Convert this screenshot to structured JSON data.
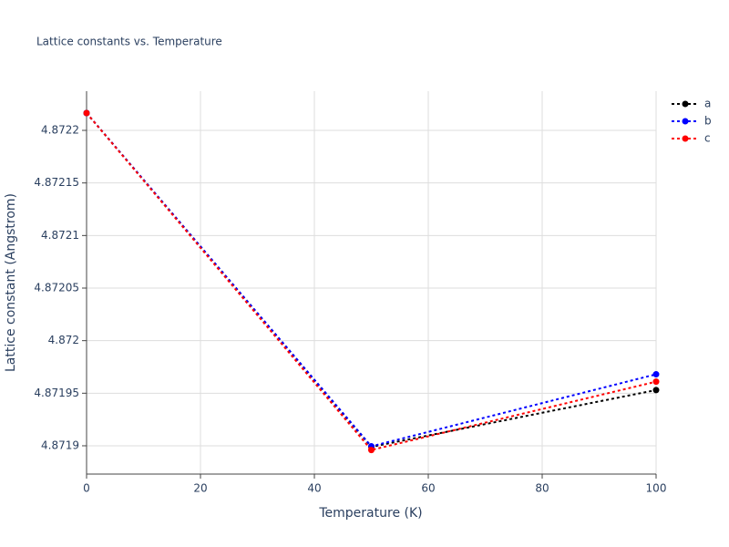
{
  "chart_data": {
    "type": "line",
    "title": "Lattice constants vs. Temperature",
    "x_label": "Temperature (K)",
    "y_label": "Lattice constant (Angstrom)",
    "x": [
      0,
      50,
      100
    ],
    "series": [
      {
        "name": "a",
        "color": "#000000",
        "values": [
          4.8722165,
          4.871899,
          4.871953
        ]
      },
      {
        "name": "b",
        "color": "#0000ff",
        "values": [
          4.8722165,
          4.8718995,
          4.871968
        ]
      },
      {
        "name": "c",
        "color": "#ff0000",
        "values": [
          4.8722165,
          4.871896,
          4.871961
        ]
      }
    ],
    "xlim": [
      0,
      100
    ],
    "xticks": [
      0,
      20,
      40,
      60,
      80,
      100
    ],
    "ylim": [
      4.8718731,
      4.8722373
    ],
    "yticks": [
      4.8719,
      4.87195,
      4.872,
      4.87205,
      4.8721,
      4.87215,
      4.8722
    ],
    "grid": true,
    "legend": "top-right",
    "line_style": "dotted"
  }
}
